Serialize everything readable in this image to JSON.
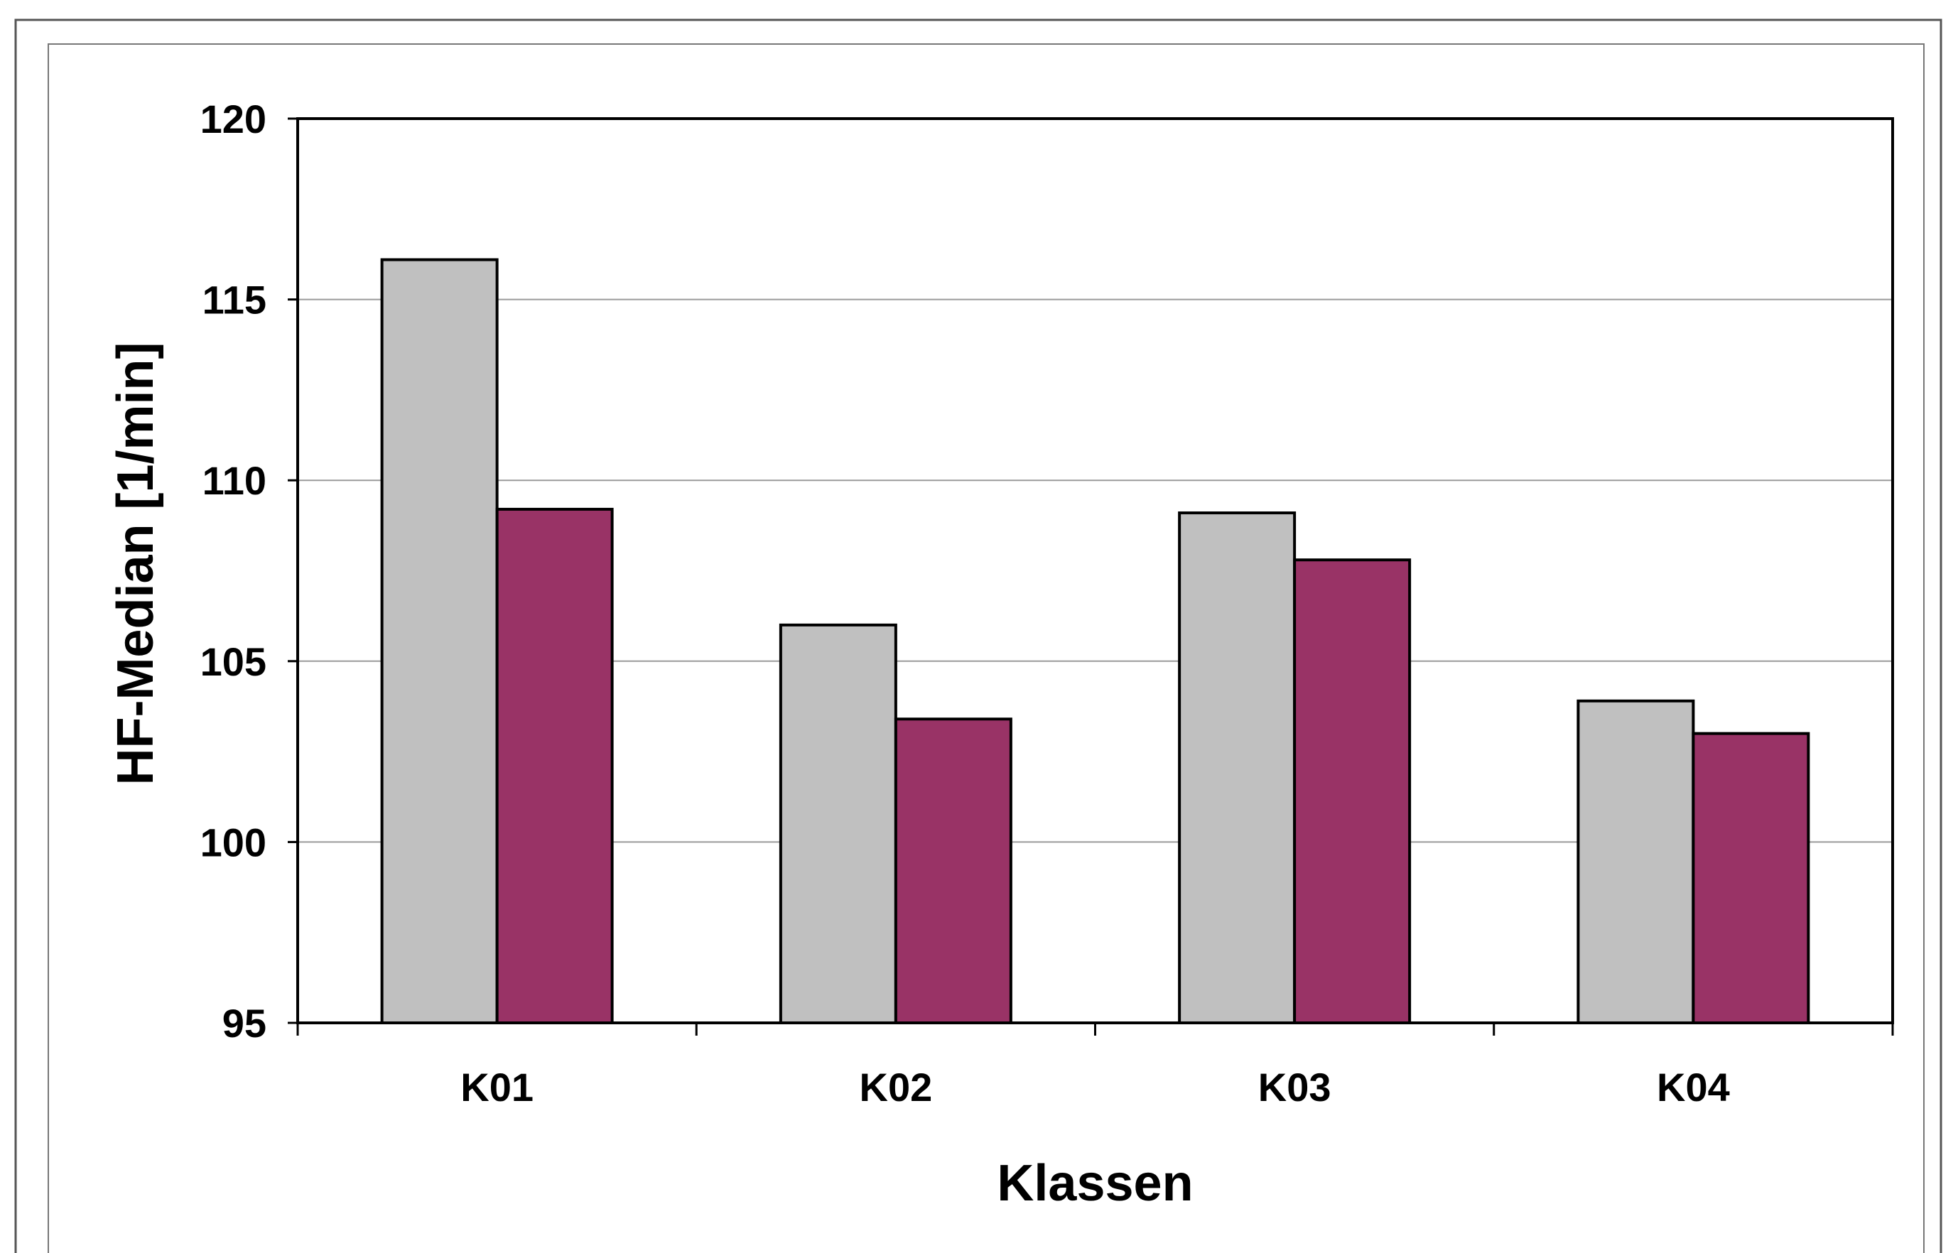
{
  "chart_data": {
    "type": "bar",
    "title": "",
    "xlabel": "Klassen",
    "ylabel": "HF-Median [1/min]",
    "categories": [
      "K01",
      "K02",
      "K03",
      "K04"
    ],
    "ylim": [
      95,
      120
    ],
    "yticks": [
      95,
      100,
      105,
      110,
      115,
      120
    ],
    "grid": true,
    "legend": "none",
    "series": [
      {
        "values": [
          116.1,
          106.0,
          109.1,
          103.9
        ],
        "color": "#c0c0c0"
      },
      {
        "values": [
          109.2,
          103.4,
          107.8,
          103.0
        ],
        "color": "#993366"
      }
    ]
  }
}
